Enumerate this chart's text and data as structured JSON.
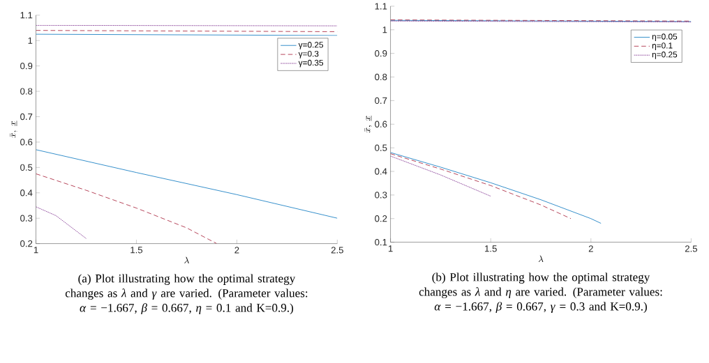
{
  "chart_data": [
    {
      "type": "line",
      "xlabel": "\\lambda",
      "ylabel": "\\bar{x},\\ \\underline{x}",
      "xlim": [
        1,
        2.5
      ],
      "xticks": [
        1,
        1.5,
        2,
        2.5
      ],
      "ylim": [
        0.2,
        1.1
      ],
      "yticks": [
        0.2,
        0.3,
        0.4,
        0.5,
        0.6,
        0.7,
        0.8,
        0.9,
        1,
        1.1
      ],
      "legend": "top right",
      "annotations": [
        "(a) Plot illustrating how the optimal strategy changes as *λ* and *γ* are varied. (Parameter values: *α* = −1.667, *β* = 0.667, *η* = 0.1 and K=0.9.)"
      ],
      "series": [
        {
          "name": "γ=0.25",
          "color": "#0072bd",
          "line_style": "solid",
          "x": [
            1,
            2.5
          ],
          "values": [
            1.025,
            1.02
          ]
        },
        {
          "name": "γ=0.3",
          "color": "#a2142f",
          "line_style": "dashed",
          "x": [
            1,
            2.5
          ],
          "values": [
            1.04,
            1.035
          ]
        },
        {
          "name": "γ=0.35",
          "color": "#7e2f8e",
          "line_style": "dotted",
          "x": [
            1,
            2.5
          ],
          "values": [
            1.06,
            1.058
          ]
        },
        {
          "color": "#0072bd",
          "line_style": "solid",
          "x": [
            1,
            1.5,
            2,
            2.5
          ],
          "values": [
            0.57,
            0.48,
            0.393,
            0.3
          ]
        },
        {
          "color": "#a2142f",
          "line_style": "dashed",
          "x": [
            1,
            1.25,
            1.5,
            1.75,
            1.9
          ],
          "values": [
            0.475,
            0.41,
            0.34,
            0.262,
            0.2
          ]
        },
        {
          "color": "#7e2f8e",
          "line_style": "dotted",
          "x": [
            1,
            1.1,
            1.25
          ],
          "values": [
            0.345,
            0.31,
            0.22
          ]
        }
      ]
    },
    {
      "type": "line",
      "xlabel": "\\lambda",
      "ylabel": "\\bar{x},\\ \\underline{x}",
      "xlim": [
        1,
        2.5
      ],
      "xticks": [
        1,
        1.5,
        2,
        2.5
      ],
      "ylim": [
        0.1,
        1.1
      ],
      "yticks": [
        0.1,
        0.2,
        0.3,
        0.4,
        0.5,
        0.6,
        0.7,
        0.8,
        0.9,
        1,
        1.1
      ],
      "legend": "top right",
      "annotations": [
        "(b) Plot illustrating how the optimal strategy changes as *λ* and *η* are varied. (Parameter values: *α* = −1.667, *β* = 0.667, *γ* = 0.3 and K=0.9.)"
      ],
      "series": [
        {
          "name": "η=0.05",
          "color": "#0072bd",
          "line_style": "solid",
          "x": [
            1,
            2.5
          ],
          "values": [
            1.04,
            1.035
          ]
        },
        {
          "name": "η=0.1",
          "color": "#a2142f",
          "line_style": "dashed",
          "x": [
            1,
            2.5
          ],
          "values": [
            1.042,
            1.037
          ]
        },
        {
          "name": "η=0.25",
          "color": "#7e2f8e",
          "line_style": "dotted",
          "x": [
            1,
            2.5
          ],
          "values": [
            1.037,
            1.033
          ]
        },
        {
          "color": "#0072bd",
          "line_style": "solid",
          "x": [
            1,
            1.25,
            1.5,
            1.75,
            2,
            2.05
          ],
          "values": [
            0.48,
            0.418,
            0.352,
            0.28,
            0.2,
            0.18
          ]
        },
        {
          "color": "#a2142f",
          "line_style": "dashed",
          "x": [
            1,
            1.25,
            1.5,
            1.75,
            1.9
          ],
          "values": [
            0.475,
            0.41,
            0.34,
            0.258,
            0.2
          ]
        },
        {
          "color": "#7e2f8e",
          "line_style": "dotted",
          "x": [
            1,
            1.25,
            1.5
          ],
          "values": [
            0.465,
            0.385,
            0.295
          ]
        }
      ]
    }
  ]
}
